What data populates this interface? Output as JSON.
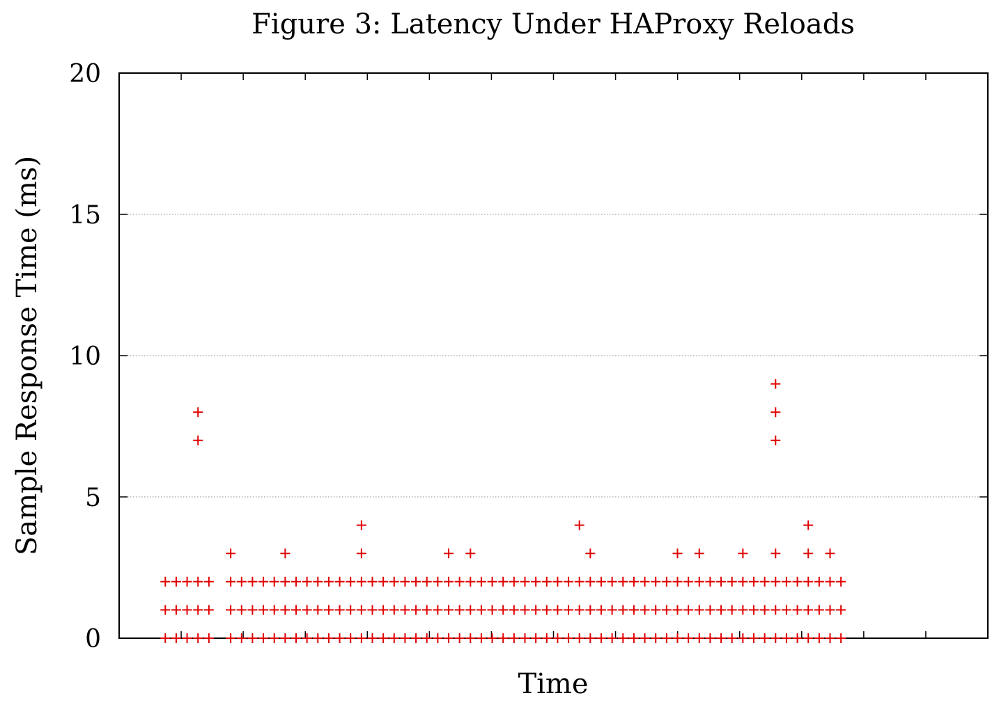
{
  "chart_data": {
    "type": "scatter",
    "title": "Figure 3: Latency Under HAProxy Reloads",
    "xlabel": "Time",
    "ylabel": "Sample Response Time (ms)",
    "ylim": [
      0,
      20
    ],
    "yticks": [
      "0",
      "5",
      "10",
      "15",
      "20"
    ],
    "xlim": [
      0,
      140
    ],
    "grid": "horizontal-dotted",
    "legend": "none",
    "marker": "plus",
    "color": "#e00000",
    "series": [
      {
        "values": [
          [
            4,
            0
          ],
          [
            4,
            1
          ],
          [
            4,
            2
          ],
          [
            6,
            0
          ],
          [
            6,
            1
          ],
          [
            6,
            2
          ],
          [
            8,
            0
          ],
          [
            8,
            1
          ],
          [
            8,
            2
          ],
          [
            10,
            0
          ],
          [
            10,
            1
          ],
          [
            10,
            2
          ],
          [
            10,
            7
          ],
          [
            10,
            8
          ],
          [
            12,
            0
          ],
          [
            12,
            1
          ],
          [
            12,
            2
          ],
          [
            16,
            0
          ],
          [
            16,
            1
          ],
          [
            16,
            2
          ],
          [
            16,
            3
          ],
          [
            18,
            0
          ],
          [
            18,
            1
          ],
          [
            18,
            2
          ],
          [
            20,
            0
          ],
          [
            20,
            1
          ],
          [
            20,
            2
          ],
          [
            22,
            0
          ],
          [
            22,
            1
          ],
          [
            22,
            2
          ],
          [
            24,
            0
          ],
          [
            24,
            1
          ],
          [
            24,
            2
          ],
          [
            26,
            0
          ],
          [
            26,
            1
          ],
          [
            26,
            2
          ],
          [
            26,
            3
          ],
          [
            28,
            0
          ],
          [
            28,
            1
          ],
          [
            28,
            2
          ],
          [
            30,
            0
          ],
          [
            30,
            1
          ],
          [
            30,
            2
          ],
          [
            32,
            0
          ],
          [
            32,
            1
          ],
          [
            32,
            2
          ],
          [
            34,
            0
          ],
          [
            34,
            1
          ],
          [
            34,
            2
          ],
          [
            36,
            0
          ],
          [
            36,
            1
          ],
          [
            36,
            2
          ],
          [
            38,
            0
          ],
          [
            38,
            1
          ],
          [
            38,
            2
          ],
          [
            40,
            0
          ],
          [
            40,
            1
          ],
          [
            40,
            2
          ],
          [
            40,
            3
          ],
          [
            40,
            4
          ],
          [
            42,
            0
          ],
          [
            42,
            1
          ],
          [
            42,
            2
          ],
          [
            44,
            0
          ],
          [
            44,
            1
          ],
          [
            44,
            2
          ],
          [
            46,
            0
          ],
          [
            46,
            1
          ],
          [
            46,
            2
          ],
          [
            48,
            0
          ],
          [
            48,
            1
          ],
          [
            48,
            2
          ],
          [
            50,
            0
          ],
          [
            50,
            1
          ],
          [
            50,
            2
          ],
          [
            52,
            0
          ],
          [
            52,
            1
          ],
          [
            52,
            2
          ],
          [
            54,
            0
          ],
          [
            54,
            1
          ],
          [
            54,
            2
          ],
          [
            56,
            0
          ],
          [
            56,
            1
          ],
          [
            56,
            2
          ],
          [
            56,
            3
          ],
          [
            58,
            0
          ],
          [
            58,
            1
          ],
          [
            58,
            2
          ],
          [
            60,
            0
          ],
          [
            60,
            1
          ],
          [
            60,
            2
          ],
          [
            60,
            3
          ],
          [
            62,
            0
          ],
          [
            62,
            1
          ],
          [
            62,
            2
          ],
          [
            64,
            0
          ],
          [
            64,
            1
          ],
          [
            64,
            2
          ],
          [
            66,
            0
          ],
          [
            66,
            1
          ],
          [
            66,
            2
          ],
          [
            68,
            0
          ],
          [
            68,
            1
          ],
          [
            68,
            2
          ],
          [
            70,
            0
          ],
          [
            70,
            1
          ],
          [
            70,
            2
          ],
          [
            72,
            0
          ],
          [
            72,
            1
          ],
          [
            72,
            2
          ],
          [
            74,
            0
          ],
          [
            74,
            1
          ],
          [
            74,
            2
          ],
          [
            76,
            0
          ],
          [
            76,
            1
          ],
          [
            76,
            2
          ],
          [
            78,
            0
          ],
          [
            78,
            1
          ],
          [
            78,
            2
          ],
          [
            80,
            0
          ],
          [
            80,
            1
          ],
          [
            80,
            2
          ],
          [
            80,
            4
          ],
          [
            82,
            0
          ],
          [
            82,
            1
          ],
          [
            82,
            2
          ],
          [
            82,
            3
          ],
          [
            84,
            0
          ],
          [
            84,
            1
          ],
          [
            84,
            2
          ],
          [
            86,
            0
          ],
          [
            86,
            1
          ],
          [
            86,
            2
          ],
          [
            88,
            0
          ],
          [
            88,
            1
          ],
          [
            88,
            2
          ],
          [
            90,
            0
          ],
          [
            90,
            1
          ],
          [
            90,
            2
          ],
          [
            92,
            0
          ],
          [
            92,
            1
          ],
          [
            92,
            2
          ],
          [
            94,
            0
          ],
          [
            94,
            1
          ],
          [
            94,
            2
          ],
          [
            96,
            0
          ],
          [
            96,
            1
          ],
          [
            96,
            2
          ],
          [
            98,
            0
          ],
          [
            98,
            1
          ],
          [
            98,
            2
          ],
          [
            98,
            3
          ],
          [
            100,
            0
          ],
          [
            100,
            1
          ],
          [
            100,
            2
          ],
          [
            102,
            0
          ],
          [
            102,
            1
          ],
          [
            102,
            2
          ],
          [
            102,
            3
          ],
          [
            104,
            0
          ],
          [
            104,
            1
          ],
          [
            104,
            2
          ],
          [
            106,
            0
          ],
          [
            106,
            1
          ],
          [
            106,
            2
          ],
          [
            108,
            0
          ],
          [
            108,
            1
          ],
          [
            108,
            2
          ],
          [
            110,
            0
          ],
          [
            110,
            1
          ],
          [
            110,
            2
          ],
          [
            110,
            3
          ],
          [
            112,
            0
          ],
          [
            112,
            1
          ],
          [
            112,
            2
          ],
          [
            114,
            0
          ],
          [
            114,
            1
          ],
          [
            114,
            2
          ],
          [
            116,
            0
          ],
          [
            116,
            1
          ],
          [
            116,
            2
          ],
          [
            116,
            3
          ],
          [
            116,
            7
          ],
          [
            116,
            8
          ],
          [
            116,
            9
          ],
          [
            118,
            0
          ],
          [
            118,
            1
          ],
          [
            118,
            2
          ],
          [
            120,
            0
          ],
          [
            120,
            1
          ],
          [
            120,
            2
          ],
          [
            122,
            0
          ],
          [
            122,
            1
          ],
          [
            122,
            2
          ],
          [
            122,
            3
          ],
          [
            122,
            4
          ],
          [
            124,
            0
          ],
          [
            124,
            1
          ],
          [
            124,
            2
          ],
          [
            126,
            0
          ],
          [
            126,
            1
          ],
          [
            126,
            2
          ],
          [
            126,
            3
          ],
          [
            128,
            0
          ],
          [
            128,
            1
          ],
          [
            128,
            2
          ]
        ]
      }
    ]
  }
}
